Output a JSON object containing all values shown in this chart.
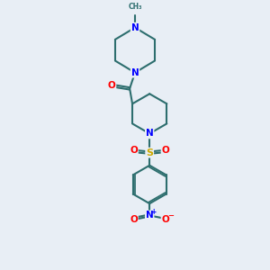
{
  "background_color": "#e8eef5",
  "atom_colors": {
    "C": "#2d6e6e",
    "N": "#0000ff",
    "O": "#ff0000",
    "S": "#ccaa00"
  },
  "bond_color": "#2d6e6e",
  "bond_width": 1.5,
  "figsize": [
    3.0,
    3.0
  ],
  "dpi": 100
}
